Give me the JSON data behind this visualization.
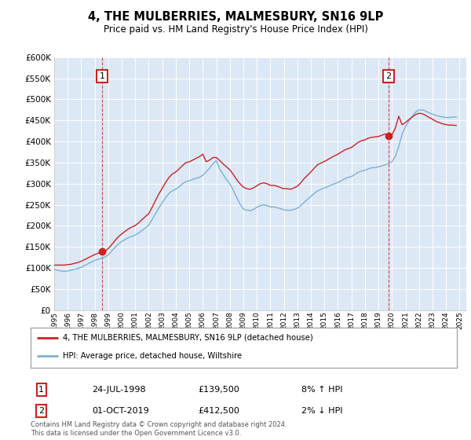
{
  "title": "4, THE MULBERRIES, MALMESBURY, SN16 9LP",
  "subtitle": "Price paid vs. HM Land Registry's House Price Index (HPI)",
  "fig_bg_color": "#ffffff",
  "plot_bg_color": "#dce8f5",
  "grid_color": "#ffffff",
  "ylim": [
    0,
    600000
  ],
  "yticks": [
    0,
    50000,
    100000,
    150000,
    200000,
    250000,
    300000,
    350000,
    400000,
    450000,
    500000,
    550000,
    600000
  ],
  "xlim_start": 1995.0,
  "xlim_end": 2025.5,
  "xticks": [
    1995,
    1996,
    1997,
    1998,
    1999,
    2000,
    2001,
    2002,
    2003,
    2004,
    2005,
    2006,
    2007,
    2008,
    2009,
    2010,
    2011,
    2012,
    2013,
    2014,
    2015,
    2016,
    2017,
    2018,
    2019,
    2020,
    2021,
    2022,
    2023,
    2024,
    2025
  ],
  "hpi_color": "#7db0d5",
  "price_color": "#cc2222",
  "sale1_x": 1998.56,
  "sale1_y": 139500,
  "sale1_label": "1",
  "sale1_date": "24-JUL-1998",
  "sale1_price": "£139,500",
  "sale1_hpi": "8% ↑ HPI",
  "sale2_x": 2019.75,
  "sale2_y": 412500,
  "sale2_label": "2",
  "sale2_date": "01-OCT-2019",
  "sale2_price": "£412,500",
  "sale2_hpi": "2% ↓ HPI",
  "legend_line1": "4, THE MULBERRIES, MALMESBURY, SN16 9LP (detached house)",
  "legend_line2": "HPI: Average price, detached house, Wiltshire",
  "footer": "Contains HM Land Registry data © Crown copyright and database right 2024.\nThis data is licensed under the Open Government Licence v3.0.",
  "hpi_data_x": [
    1995.0,
    1995.25,
    1995.5,
    1995.75,
    1996.0,
    1996.25,
    1996.5,
    1996.75,
    1997.0,
    1997.25,
    1997.5,
    1997.75,
    1998.0,
    1998.25,
    1998.5,
    1998.75,
    1999.0,
    1999.25,
    1999.5,
    1999.75,
    2000.0,
    2000.25,
    2000.5,
    2000.75,
    2001.0,
    2001.25,
    2001.5,
    2001.75,
    2002.0,
    2002.25,
    2002.5,
    2002.75,
    2003.0,
    2003.25,
    2003.5,
    2003.75,
    2004.0,
    2004.25,
    2004.5,
    2004.75,
    2005.0,
    2005.25,
    2005.5,
    2005.75,
    2006.0,
    2006.25,
    2006.5,
    2006.75,
    2007.0,
    2007.25,
    2007.5,
    2007.75,
    2008.0,
    2008.25,
    2008.5,
    2008.75,
    2009.0,
    2009.25,
    2009.5,
    2009.75,
    2010.0,
    2010.25,
    2010.5,
    2010.75,
    2011.0,
    2011.25,
    2011.5,
    2011.75,
    2012.0,
    2012.25,
    2012.5,
    2012.75,
    2013.0,
    2013.25,
    2013.5,
    2013.75,
    2014.0,
    2014.25,
    2014.5,
    2014.75,
    2015.0,
    2015.25,
    2015.5,
    2015.75,
    2016.0,
    2016.25,
    2016.5,
    2016.75,
    2017.0,
    2017.25,
    2017.5,
    2017.75,
    2018.0,
    2018.25,
    2018.5,
    2018.75,
    2019.0,
    2019.25,
    2019.5,
    2019.75,
    2020.0,
    2020.25,
    2020.5,
    2020.75,
    2021.0,
    2021.25,
    2021.5,
    2021.75,
    2022.0,
    2022.25,
    2022.5,
    2022.75,
    2023.0,
    2023.25,
    2023.5,
    2023.75,
    2024.0,
    2024.25,
    2024.5,
    2024.75
  ],
  "hpi_data_y": [
    97000,
    95000,
    93000,
    92000,
    93000,
    95000,
    97000,
    99000,
    102000,
    106000,
    110000,
    114000,
    118000,
    121000,
    123000,
    126000,
    131000,
    140000,
    149000,
    157000,
    163000,
    168000,
    172000,
    175000,
    178000,
    183000,
    189000,
    195000,
    202000,
    215000,
    229000,
    243000,
    255000,
    267000,
    277000,
    283000,
    287000,
    293000,
    300000,
    305000,
    307000,
    310000,
    313000,
    315000,
    320000,
    328000,
    337000,
    347000,
    355000,
    335000,
    322000,
    310000,
    300000,
    285000,
    268000,
    252000,
    240000,
    237000,
    236000,
    239000,
    244000,
    248000,
    250000,
    248000,
    245000,
    245000,
    243000,
    241000,
    238000,
    237000,
    237000,
    239000,
    242000,
    248000,
    256000,
    263000,
    270000,
    277000,
    283000,
    287000,
    290000,
    293000,
    297000,
    300000,
    303000,
    307000,
    312000,
    315000,
    317000,
    322000,
    327000,
    330000,
    332000,
    335000,
    338000,
    338000,
    340000,
    342000,
    345000,
    348000,
    352000,
    365000,
    388000,
    418000,
    435000,
    448000,
    460000,
    470000,
    475000,
    475000,
    472000,
    468000,
    465000,
    462000,
    460000,
    458000,
    457000,
    457000,
    458000,
    458000
  ],
  "price_data_x": [
    1995.0,
    1995.25,
    1995.5,
    1995.75,
    1996.0,
    1996.25,
    1996.5,
    1996.75,
    1997.0,
    1997.25,
    1997.5,
    1997.75,
    1998.0,
    1998.25,
    1998.5,
    1998.75,
    1999.0,
    1999.25,
    1999.5,
    1999.75,
    2000.0,
    2000.25,
    2000.5,
    2000.75,
    2001.0,
    2001.25,
    2001.5,
    2001.75,
    2002.0,
    2002.25,
    2002.5,
    2002.75,
    2003.0,
    2003.25,
    2003.5,
    2003.75,
    2004.0,
    2004.25,
    2004.5,
    2004.75,
    2005.0,
    2005.25,
    2005.5,
    2005.75,
    2006.0,
    2006.25,
    2006.5,
    2006.75,
    2007.0,
    2007.25,
    2007.5,
    2007.75,
    2008.0,
    2008.25,
    2008.5,
    2008.75,
    2009.0,
    2009.25,
    2009.5,
    2009.75,
    2010.0,
    2010.25,
    2010.5,
    2010.75,
    2011.0,
    2011.25,
    2011.5,
    2011.75,
    2012.0,
    2012.25,
    2012.5,
    2012.75,
    2013.0,
    2013.25,
    2013.5,
    2013.75,
    2014.0,
    2014.25,
    2014.5,
    2014.75,
    2015.0,
    2015.25,
    2015.5,
    2015.75,
    2016.0,
    2016.25,
    2016.5,
    2016.75,
    2017.0,
    2017.25,
    2017.5,
    2017.75,
    2018.0,
    2018.25,
    2018.5,
    2018.75,
    2019.0,
    2019.25,
    2019.5,
    2019.75,
    2020.0,
    2020.25,
    2020.5,
    2020.75,
    2021.0,
    2021.25,
    2021.5,
    2021.75,
    2022.0,
    2022.25,
    2022.5,
    2022.75,
    2023.0,
    2023.25,
    2023.5,
    2023.75,
    2024.0,
    2024.25,
    2024.5,
    2024.75
  ],
  "price_data_y": [
    107000,
    107000,
    107000,
    107000,
    108000,
    109000,
    111000,
    113000,
    116000,
    120000,
    124000,
    128000,
    132000,
    135000,
    138000,
    139500,
    146000,
    155000,
    165000,
    174000,
    181000,
    187000,
    193000,
    197000,
    201000,
    207000,
    215000,
    222000,
    229000,
    244000,
    260000,
    276000,
    289000,
    303000,
    315000,
    323000,
    328000,
    335000,
    343000,
    350000,
    352000,
    356000,
    360000,
    364000,
    370000,
    352000,
    356000,
    362000,
    362000,
    355000,
    347000,
    340000,
    333000,
    322000,
    310000,
    300000,
    292000,
    288000,
    287000,
    290000,
    295000,
    300000,
    302000,
    300000,
    296000,
    296000,
    294000,
    291000,
    288000,
    288000,
    287000,
    290000,
    294000,
    302000,
    312000,
    320000,
    328000,
    337000,
    345000,
    349000,
    353000,
    357000,
    362000,
    366000,
    370000,
    375000,
    380000,
    383000,
    386000,
    392000,
    398000,
    402000,
    404000,
    408000,
    410000,
    411000,
    412000,
    415000,
    418000,
    412500,
    416000,
    432000,
    460000,
    440000,
    445000,
    452000,
    458000,
    464000,
    467000,
    466000,
    462000,
    457000,
    453000,
    448000,
    445000,
    442000,
    440000,
    439000,
    439000,
    438000
  ]
}
